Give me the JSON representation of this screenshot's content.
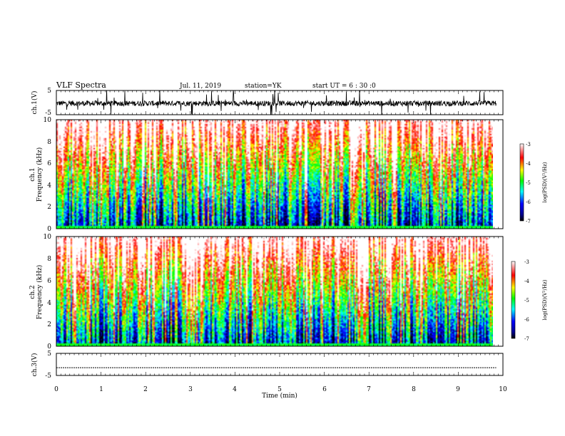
{
  "header": {
    "title": "VLF Spectra",
    "date": "Jul. 11, 2019",
    "station": "station=YK",
    "start_ut": "start UT = 6 : 30 :0"
  },
  "chart_data": {
    "type": "heatmap",
    "x_axis": {
      "label": "Time (min)",
      "range": [
        0,
        10
      ],
      "tick_labels": [
        "0",
        "1",
        "2",
        "3",
        "4",
        "5",
        "6",
        "7",
        "8",
        "9",
        "10"
      ]
    },
    "panels": [
      {
        "id": "ch1_waveform",
        "type": "line",
        "ylabel": "ch.1(V)",
        "ylim": [
          -5,
          5
        ],
        "tick_labels": [
          "5",
          "-5"
        ],
        "data_end_min": 9.85
      },
      {
        "id": "ch1_spectrogram",
        "type": "heatmap",
        "ylabel_line1": "ch.1",
        "ylabel_line2": "Frequency (kHz)",
        "ylim": [
          0,
          10
        ],
        "tick_labels": [
          "0",
          "2",
          "4",
          "6",
          "8",
          "10"
        ],
        "data_end_min": 9.85
      },
      {
        "id": "ch2_spectrogram",
        "type": "heatmap",
        "ylabel_line1": "ch.2",
        "ylabel_line2": "Frequency (kHz)",
        "ylim": [
          0,
          10
        ],
        "tick_labels": [
          "0",
          "2",
          "4",
          "6",
          "8",
          "10"
        ],
        "data_end_min": 9.85
      },
      {
        "id": "ch3_waveform",
        "type": "line",
        "ylabel": "ch.3(V)",
        "ylim": [
          -5,
          5
        ],
        "tick_labels": [
          "5",
          "-5"
        ],
        "level_v": -1.5,
        "data_end_min": 9.85
      }
    ],
    "colorbar": {
      "label": "log(PSD)(V²/Hz)",
      "range": [
        -7,
        -3
      ],
      "tick_labels": [
        "-3",
        "-4",
        "-5",
        "-6",
        "-7"
      ],
      "colormap": [
        "#000000",
        "#00008b",
        "#0000ff",
        "#00ffff",
        "#00ff00",
        "#ffff00",
        "#ff0000",
        "#ffffff"
      ]
    }
  }
}
